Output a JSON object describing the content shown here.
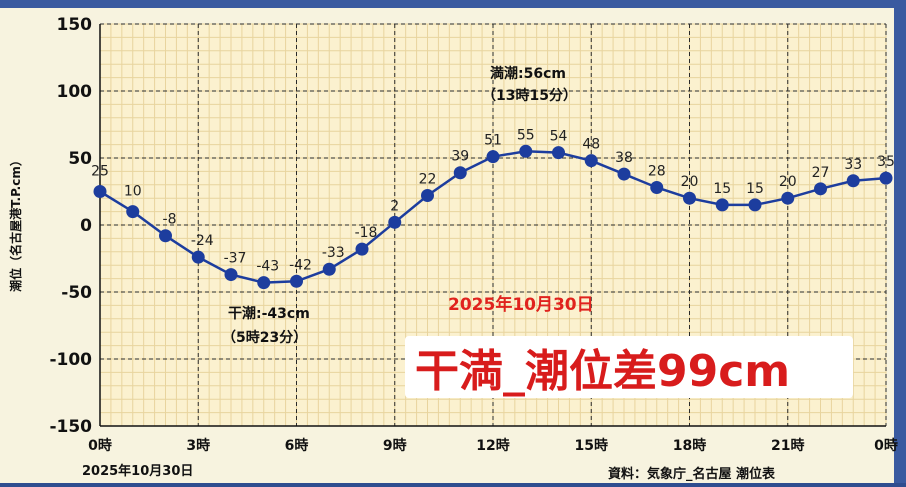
{
  "chart_data": {
    "type": "line",
    "ylabel": "潮位（名古屋港T.P.cm）",
    "ylim": [
      -150,
      150
    ],
    "y_ticks": [
      150,
      100,
      50,
      0,
      -50,
      -100,
      -150
    ],
    "xlim": [
      0,
      24
    ],
    "x_ticks": [
      0,
      3,
      6,
      9,
      12,
      15,
      18,
      21,
      24
    ],
    "x_tick_labels": [
      "0時",
      "3時",
      "6時",
      "9時",
      "12時",
      "15時",
      "18時",
      "21時",
      "0時"
    ],
    "x_date_label": "2025年10月30日",
    "grid": true,
    "series": [
      {
        "color": "#1d3d9e",
        "x": [
          0,
          1,
          2,
          3,
          4,
          5,
          6,
          7,
          8,
          9,
          10,
          11,
          12,
          13,
          14,
          15,
          16,
          17,
          18,
          19,
          20,
          21,
          22,
          23,
          24
        ],
        "values": [
          25,
          10,
          -8,
          -24,
          -37,
          -43,
          -42,
          -33,
          -18,
          2,
          22,
          39,
          51,
          55,
          54,
          48,
          38,
          28,
          20,
          15,
          15,
          20,
          27,
          33,
          35
        ],
        "labels": [
          "25",
          "10",
          "-8",
          "-24",
          "-37",
          "-43",
          "-42",
          "-33",
          "-18",
          "2",
          "22",
          "39",
          "51",
          "55",
          "54",
          "48",
          "38",
          "28",
          "20",
          "15",
          "15",
          "20",
          "27",
          "33",
          "35"
        ]
      }
    ],
    "annotations": {
      "high": {
        "text": "満潮:56cm",
        "time": "（13時15分）"
      },
      "low": {
        "text": "干潮:-43cm",
        "time": "（5時23分）"
      },
      "date": "2025年10月30日",
      "headline": "干満_潮位差99cm"
    },
    "source": "資料：気象庁_名古屋 潮位表"
  },
  "colors": {
    "line": "#1d3d9e",
    "grid_minor": "#e8d49e",
    "grid_major": "#2a2a2a",
    "plot_bg": "#fbf1cf",
    "headline": "#d81c1c",
    "date_text": "#e0231e"
  }
}
